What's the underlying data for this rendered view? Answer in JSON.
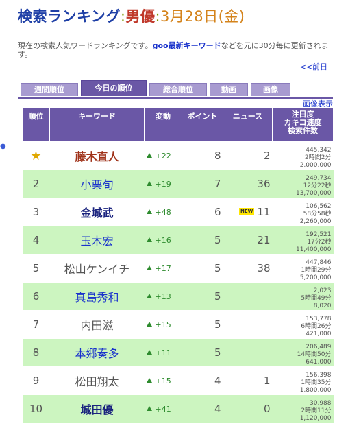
{
  "header": {
    "part1": "検索ランキング",
    "sep1": ":",
    "category": "男優",
    "sep2": ":",
    "date": "3月28日(金)"
  },
  "description": {
    "before": "現在の検索人気ワードランキングです。",
    "goo": "goo",
    "link": "最新キーワード",
    "after": "などを元に30分毎に更新されます。"
  },
  "prev_link": "<<前日",
  "tabs": [
    "週間順位",
    "今日の順位",
    "総合順位",
    "動画",
    "画像"
  ],
  "active_tab": "今日の順位",
  "image_display": "画像表示",
  "columns": {
    "rank": "順位",
    "keyword": "キーワード",
    "change": "変動",
    "points": "ポイント",
    "news": "ニュース",
    "stats": [
      "注目度",
      "カキコ速度",
      "検索件数"
    ]
  },
  "rows": [
    {
      "rank": "",
      "keyword": "藤木直人",
      "change": "+22",
      "points": "8",
      "news": "2",
      "new": false,
      "attention": "445,342",
      "speed": "2時間2分",
      "count": "2,000,000",
      "style": "c1"
    },
    {
      "rank": "2",
      "keyword": "小栗旬",
      "change": "+19",
      "points": "7",
      "news": "36",
      "new": false,
      "attention": "249,734",
      "speed": "12分22秒",
      "count": "13,700,000",
      "style": "c2"
    },
    {
      "rank": "3",
      "keyword": "金城武",
      "change": "+48",
      "points": "6",
      "news": "11",
      "new": true,
      "attention": "106,562",
      "speed": "58分58秒",
      "count": "2,260,000",
      "style": "c3"
    },
    {
      "rank": "4",
      "keyword": "玉木宏",
      "change": "+16",
      "points": "5",
      "news": "21",
      "new": false,
      "attention": "192,521",
      "speed": "17分2秒",
      "count": "11,400,000",
      "style": "c2"
    },
    {
      "rank": "5",
      "keyword": "松山ケンイチ",
      "change": "+17",
      "points": "5",
      "news": "38",
      "new": false,
      "attention": "447,846",
      "speed": "1時間29分",
      "count": "5,200,000",
      "style": "c4"
    },
    {
      "rank": "6",
      "keyword": "真島秀和",
      "change": "+13",
      "points": "5",
      "news": "",
      "new": false,
      "attention": "2,023",
      "speed": "5時間49分",
      "count": "8,020",
      "style": "c2"
    },
    {
      "rank": "7",
      "keyword": "内田滋",
      "change": "+15",
      "points": "5",
      "news": "",
      "new": false,
      "attention": "153,778",
      "speed": "6時間26分",
      "count": "421,000",
      "style": "c4"
    },
    {
      "rank": "8",
      "keyword": "本郷奏多",
      "change": "+11",
      "points": "5",
      "news": "",
      "new": false,
      "attention": "206,489",
      "speed": "14時間50分",
      "count": "641,000",
      "style": "c2"
    },
    {
      "rank": "9",
      "keyword": "松田翔太",
      "change": "+15",
      "points": "4",
      "news": "1",
      "new": false,
      "attention": "156,398",
      "speed": "1時間35分",
      "count": "1,800,000",
      "style": "c4"
    },
    {
      "rank": "10",
      "keyword": "城田優",
      "change": "+41",
      "points": "4",
      "news": "0",
      "new": false,
      "attention": "30,988",
      "speed": "2時間11分",
      "count": "1,120,000",
      "style": "c3"
    }
  ],
  "new_badge": "NEW",
  "star_icon": "star-icon",
  "arrow_icon": "up-arrow-icon"
}
